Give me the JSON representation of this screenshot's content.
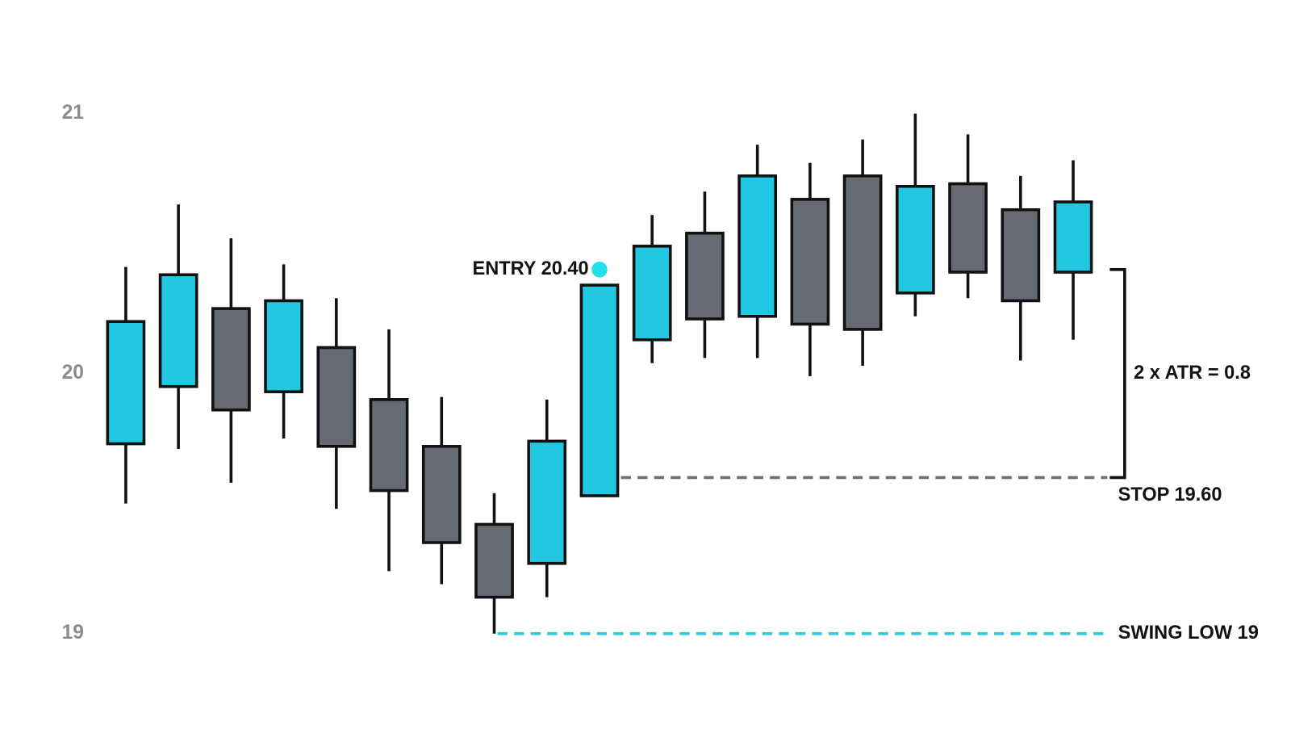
{
  "chart_data": {
    "type": "candlestick",
    "open": [
      19.73,
      19.95,
      20.25,
      19.93,
      20.1,
      19.9,
      19.72,
      19.42,
      19.27,
      19.53,
      20.13,
      20.54,
      20.22,
      20.67,
      20.76,
      20.31,
      20.73,
      20.63,
      20.39
    ],
    "high": [
      20.41,
      20.65,
      20.52,
      20.42,
      20.29,
      20.17,
      19.91,
      19.54,
      19.9,
      20.34,
      20.61,
      20.7,
      20.88,
      20.81,
      20.9,
      21.0,
      20.92,
      20.76,
      20.82
    ],
    "low": [
      19.5,
      19.71,
      19.58,
      19.75,
      19.48,
      19.24,
      19.19,
      19.0,
      19.14,
      19.53,
      20.04,
      20.06,
      20.06,
      19.99,
      20.03,
      20.22,
      20.29,
      20.05,
      20.13
    ],
    "close": [
      20.2,
      20.38,
      19.86,
      20.28,
      19.72,
      19.55,
      19.35,
      19.14,
      19.74,
      20.34,
      20.49,
      20.21,
      20.76,
      20.19,
      20.17,
      20.72,
      20.39,
      20.28,
      20.66
    ],
    "up_color": "#22c8e2",
    "down_color": "#656a73",
    "ylim": [
      18.7,
      21.3
    ],
    "yticks": [
      19,
      20,
      21
    ],
    "grid": false,
    "entry": {
      "label": "ENTRY 20.40",
      "value": 20.4,
      "color": "#22e0ee"
    },
    "stop": {
      "label": "STOP 19.60",
      "value": 19.6,
      "color": "#6b6f76"
    },
    "swing_low": {
      "label": "SWING LOW 19",
      "value": 19,
      "color": "#2ec9dd"
    },
    "atr_label": "2 x ATR = 0.8"
  }
}
